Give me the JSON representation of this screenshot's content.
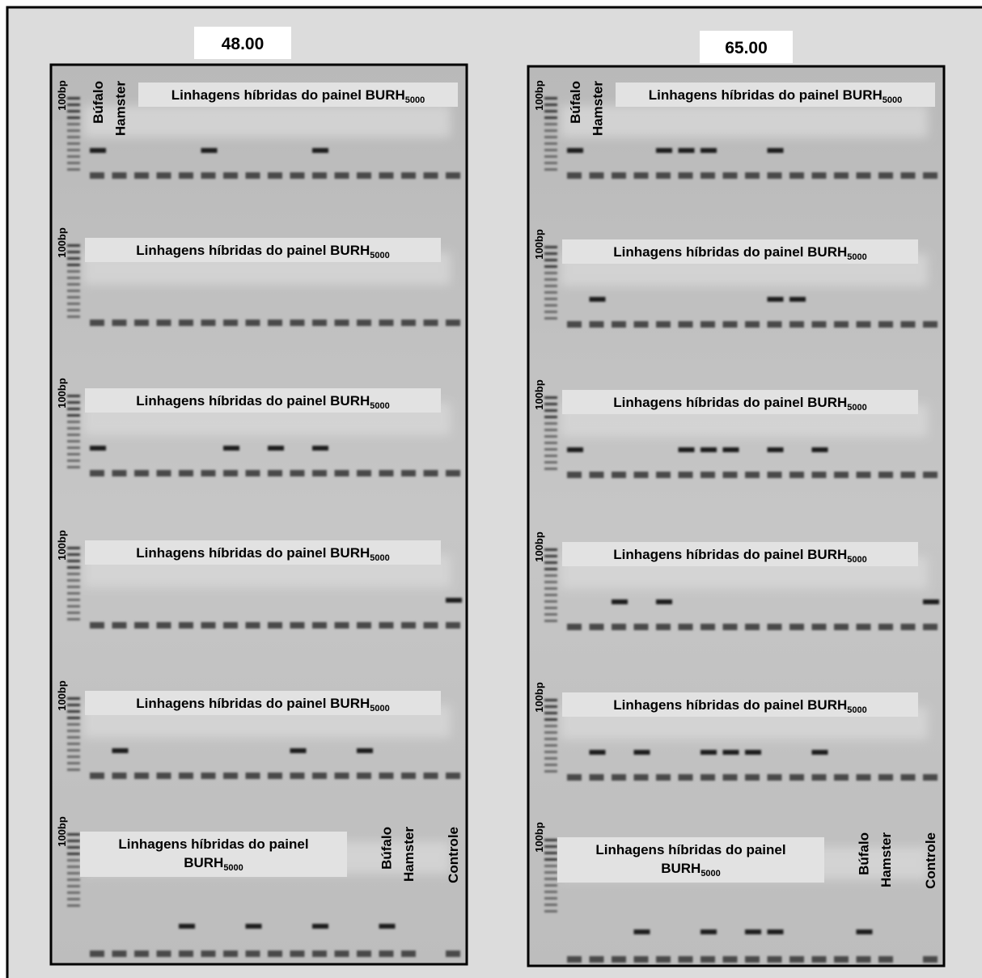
{
  "panels": [
    {
      "title": "48.00",
      "rows": [
        {
          "ladder": "100bp",
          "label": "Linhagens híbridas do painel BURH",
          "label_sub": "5000",
          "lanes": [
            "Búfalo",
            "Hamster"
          ]
        },
        {
          "ladder": "100bp",
          "label": "Linhagens híbridas do painel BURH",
          "label_sub": "5000"
        },
        {
          "ladder": "100bp",
          "label": "Linhagens híbridas do painel BURH",
          "label_sub": "5000"
        },
        {
          "ladder": "100bp",
          "label": "Linhagens híbridas do painel BURH",
          "label_sub": "5000"
        },
        {
          "ladder": "100bp",
          "label": "Linhagens híbridas do painel BURH",
          "label_sub": "5000"
        },
        {
          "ladder": "100bp",
          "label": "Linhagens híbridas do painel",
          "label_line2": "BURH",
          "label_sub": "5000",
          "lanes": [
            "Búfalo",
            "Hamster",
            "Controle"
          ]
        }
      ]
    },
    {
      "title": "65.00",
      "rows": [
        {
          "ladder": "100bp",
          "label": "Linhagens híbridas do painel BURH",
          "label_sub": "5000",
          "lanes": [
            "Búfalo",
            "Hamster"
          ]
        },
        {
          "ladder": "100bp",
          "label": "Linhagens híbridas do painel BURH",
          "label_sub": "5000"
        },
        {
          "ladder": "100bp",
          "label": "Linhagens híbridas do painel BURH",
          "label_sub": "5000"
        },
        {
          "ladder": "100bp",
          "label": "Linhagens híbridas do painel BURH",
          "label_sub": "5000"
        },
        {
          "ladder": "100bp",
          "label": "Linhagens híbridas do painel BURH",
          "label_sub": "5000"
        },
        {
          "ladder": "100bp",
          "label": "Linhagens híbridas do painel",
          "label_line2": "BURH",
          "label_sub": "5000",
          "lanes": [
            "Búfalo",
            "Hamster",
            "Controle"
          ]
        }
      ]
    }
  ]
}
